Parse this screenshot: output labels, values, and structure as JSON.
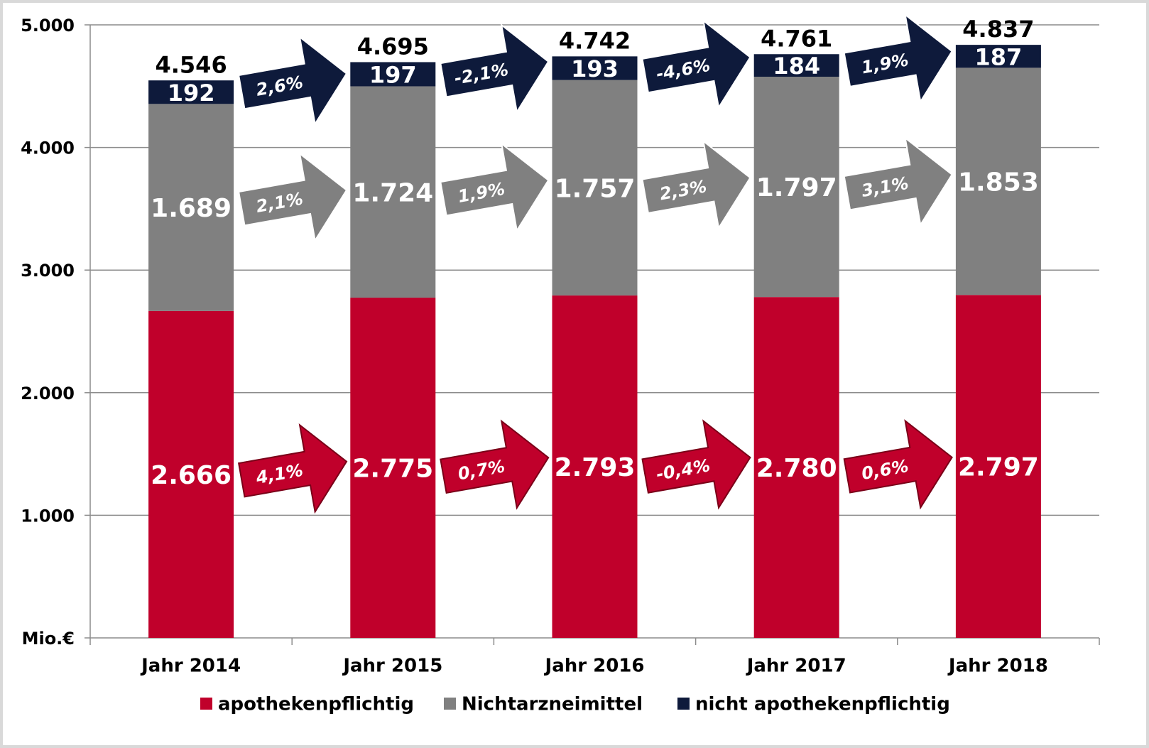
{
  "chart_data": {
    "type": "stacked_bar",
    "categories": [
      "Jahr 2014",
      "Jahr 2015",
      "Jahr 2016",
      "Jahr 2017",
      "Jahr 2018"
    ],
    "series": [
      {
        "name": "apothekenpflichtig",
        "color": "#c0002b",
        "values": [
          2666,
          2775,
          2793,
          2780,
          2797
        ],
        "value_labels": [
          "2.666",
          "2.775",
          "2.793",
          "2.780",
          "2.797"
        ],
        "change_labels": [
          "4,1%",
          "0,7%",
          "-0,4%",
          "0,6%"
        ]
      },
      {
        "name": "Nichtarzneimittel",
        "color": "#808080",
        "values": [
          1689,
          1724,
          1757,
          1797,
          1853
        ],
        "value_labels": [
          "1.689",
          "1.724",
          "1.757",
          "1.797",
          "1.853"
        ],
        "change_labels": [
          "2,1%",
          "1,9%",
          "2,3%",
          "3,1%"
        ]
      },
      {
        "name": "nicht apothekenpflichtig",
        "color": "#0e1a3b",
        "values": [
          192,
          197,
          193,
          184,
          187
        ],
        "change_labels": [
          "2,6%",
          "-2,1%",
          "-4,6%",
          "1,9%"
        ]
      }
    ],
    "totals": {
      "values": [
        4546,
        4695,
        4742,
        4761,
        4837
      ],
      "value_labels": [
        "4.546",
        "4.695",
        "4.742",
        "4.761",
        "4.837"
      ]
    },
    "ylim": [
      0,
      5000
    ],
    "yticks": [
      {
        "value": 0,
        "label": "Mio.€"
      },
      {
        "value": 1000,
        "label": "1.000"
      },
      {
        "value": 2000,
        "label": "2.000"
      },
      {
        "value": 3000,
        "label": "3.000"
      },
      {
        "value": 4000,
        "label": "4.000"
      },
      {
        "value": 5000,
        "label": "5.000"
      }
    ],
    "grid": true,
    "legend": "bottom"
  }
}
